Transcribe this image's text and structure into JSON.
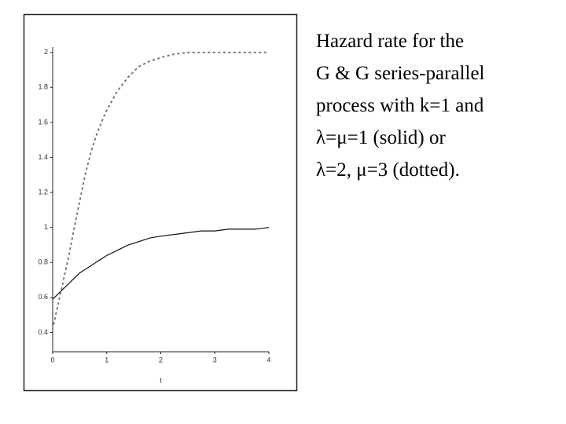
{
  "chart_data": {
    "type": "line",
    "x": [
      0,
      0.1,
      0.2,
      0.3,
      0.4,
      0.5,
      0.6,
      0.7,
      0.8,
      0.9,
      1,
      1.2,
      1.4,
      1.6,
      1.8,
      2,
      2.25,
      2.5,
      2.75,
      3,
      3.25,
      3.5,
      3.75,
      4
    ],
    "series": [
      {
        "color": "#111111",
        "style": "solid",
        "values": [
          0.59,
          0.62,
          0.65,
          0.68,
          0.71,
          0.74,
          0.76,
          0.78,
          0.8,
          0.82,
          0.84,
          0.87,
          0.9,
          0.92,
          0.94,
          0.95,
          0.96,
          0.97,
          0.98,
          0.98,
          0.99,
          0.99,
          0.99,
          1.0
        ]
      },
      {
        "color": "#777777",
        "style": "dotted",
        "values": [
          0.42,
          0.56,
          0.7,
          0.84,
          1.0,
          1.15,
          1.3,
          1.42,
          1.52,
          1.6,
          1.67,
          1.78,
          1.86,
          1.92,
          1.95,
          1.97,
          1.99,
          2.0,
          2.0,
          2.0,
          2.0,
          2.0,
          2.0,
          2.0
        ]
      }
    ],
    "x_label": "t",
    "xlim": [
      0,
      4
    ],
    "xticks": [
      0,
      1,
      2,
      3,
      4
    ],
    "ylim": [
      0.29,
      2.03
    ],
    "yticks": [
      0.4,
      0.6,
      0.8,
      1,
      1.2,
      1.4,
      1.6,
      1.8,
      2
    ]
  },
  "caption": [
    "Hazard rate for the",
    "G & G series-parallel",
    "process with k=1 and",
    "λ=μ=1 (solid) or",
    "λ=2, μ=3 (dotted)."
  ]
}
